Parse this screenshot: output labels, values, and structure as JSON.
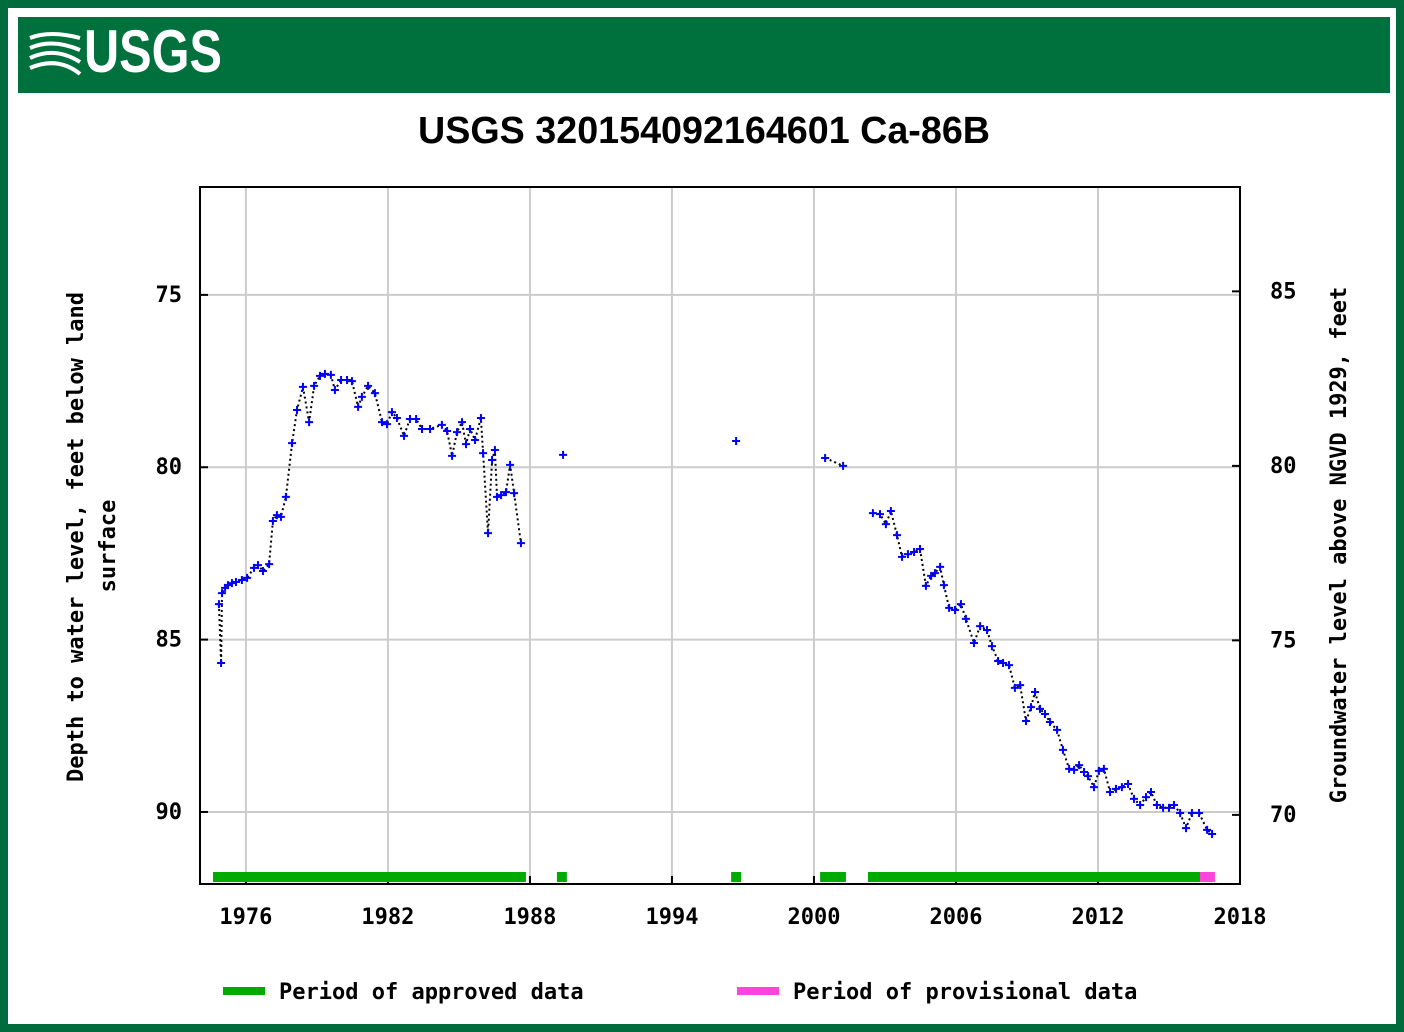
{
  "logo_text": "USGS",
  "chart_data": {
    "type": "scatter",
    "title": "USGS 320154092164601 Ca-86B",
    "ylabel": [
      "Depth to water level, feet below land",
      "surface"
    ],
    "y2label": "Groundwater level above NGVD 1929, feet",
    "xlim": [
      1974.06,
      2018
    ],
    "xticks": [
      1976,
      1982,
      1988,
      1994,
      2000,
      2006,
      2012,
      2018
    ],
    "ylim": [
      92.09,
      71.87
    ],
    "yticks": [
      75,
      80,
      85,
      90
    ],
    "y2lim": [
      68.02,
      87.99
    ],
    "y2ticks": [
      70,
      75,
      80,
      85
    ],
    "grid": true,
    "line_style": "dotted",
    "line_color": "#000000",
    "x": [
      1974.86,
      1974.95,
      1974.99,
      1975.12,
      1975.24,
      1975.41,
      1975.58,
      1975.83,
      1976.05,
      1976.34,
      1976.51,
      1976.72,
      1976.98,
      1977.14,
      1977.31,
      1977.48,
      1977.69,
      1977.95,
      1978.16,
      1978.41,
      1978.67,
      1978.88,
      1979.13,
      1979.34,
      1979.59,
      1979.76,
      1980.02,
      1980.27,
      1980.48,
      1980.74,
      1980.9,
      1981.16,
      1981.45,
      1981.75,
      1981.96,
      1982.17,
      1982.38,
      1982.68,
      1982.93,
      1983.19,
      1983.44,
      1983.78,
      1984.28,
      1984.5,
      1984.71,
      1984.92,
      1985.13,
      1985.3,
      1985.47,
      1985.68,
      1985.93,
      1986.02,
      1986.23,
      1986.4,
      1986.52,
      1986.61,
      1986.78,
      1986.99,
      1987.16,
      1987.33,
      1987.62,
      null,
      1989.4,
      null,
      1996.71,
      null,
      2000.47,
      2001.23,
      null,
      2002.49,
      2002.79,
      2003.04,
      2003.25,
      2003.51,
      2003.72,
      2003.97,
      2004.23,
      2004.48,
      2004.73,
      2004.95,
      2005.11,
      2005.33,
      2005.49,
      2005.71,
      2005.96,
      2006.21,
      2006.42,
      2006.76,
      2007.02,
      2007.31,
      2007.52,
      2007.78,
      2007.99,
      2008.24,
      2008.49,
      2008.71,
      2008.96,
      2009.17,
      2009.34,
      2009.55,
      2009.76,
      2009.97,
      2010.27,
      2010.52,
      2010.78,
      2010.99,
      2011.2,
      2011.41,
      2011.58,
      2011.83,
      2012.04,
      2012.25,
      2012.51,
      2012.76,
      2013.01,
      2013.27,
      2013.52,
      2013.78,
      2014.03,
      2014.24,
      2014.49,
      2014.75,
      2015.0,
      2015.21,
      2015.47,
      2015.72,
      2015.97,
      2016.27,
      2016.61,
      2016.82
    ],
    "series": [
      {
        "color": "#0000ff",
        "values": [
          83.97,
          85.68,
          83.65,
          83.5,
          83.42,
          83.36,
          83.33,
          83.27,
          83.21,
          82.92,
          82.84,
          83.01,
          82.81,
          81.56,
          81.39,
          81.44,
          80.86,
          79.3,
          78.34,
          77.67,
          78.69,
          77.64,
          77.35,
          77.29,
          77.32,
          77.76,
          77.47,
          77.47,
          77.5,
          78.25,
          77.96,
          77.64,
          77.85,
          78.69,
          78.75,
          78.4,
          78.57,
          79.09,
          78.6,
          78.6,
          78.89,
          78.89,
          78.77,
          78.95,
          79.67,
          78.98,
          78.69,
          79.33,
          78.89,
          79.21,
          78.57,
          79.59,
          81.91,
          79.79,
          79.5,
          80.86,
          80.81,
          80.72,
          79.93,
          80.75,
          82.2,
          null,
          79.64,
          null,
          79.24,
          null,
          79.73,
          79.96,
          null,
          81.33,
          81.36,
          81.65,
          81.27,
          81.97,
          82.6,
          82.52,
          82.46,
          82.37,
          83.44,
          83.15,
          83.07,
          82.89,
          83.42,
          84.08,
          84.14,
          83.97,
          84.4,
          85.1,
          84.61,
          84.72,
          85.19,
          85.62,
          85.68,
          85.74,
          86.4,
          86.32,
          87.36,
          86.96,
          86.52,
          87.01,
          87.16,
          87.39,
          87.62,
          88.2,
          88.75,
          88.78,
          88.64,
          88.84,
          88.96,
          89.28,
          88.81,
          88.75,
          89.42,
          89.33,
          89.28,
          89.19,
          89.62,
          89.8,
          89.57,
          89.42,
          89.8,
          89.88,
          89.88,
          89.8,
          90.03,
          90.47,
          90.03,
          90.03,
          90.52,
          90.64
        ]
      }
    ],
    "periods": [
      {
        "name": "Period of approved data",
        "color": "#00aa00",
        "ranges": [
          [
            1974.61,
            1987.83
          ],
          [
            1989.14,
            1989.56
          ],
          [
            1996.5,
            1996.92
          ],
          [
            2000.26,
            2001.35
          ],
          [
            2002.28,
            2016.31
          ]
        ]
      },
      {
        "name": "Period of provisional data",
        "color": "#ff44dd",
        "ranges": [
          [
            2016.31,
            2016.94
          ]
        ]
      }
    ]
  }
}
